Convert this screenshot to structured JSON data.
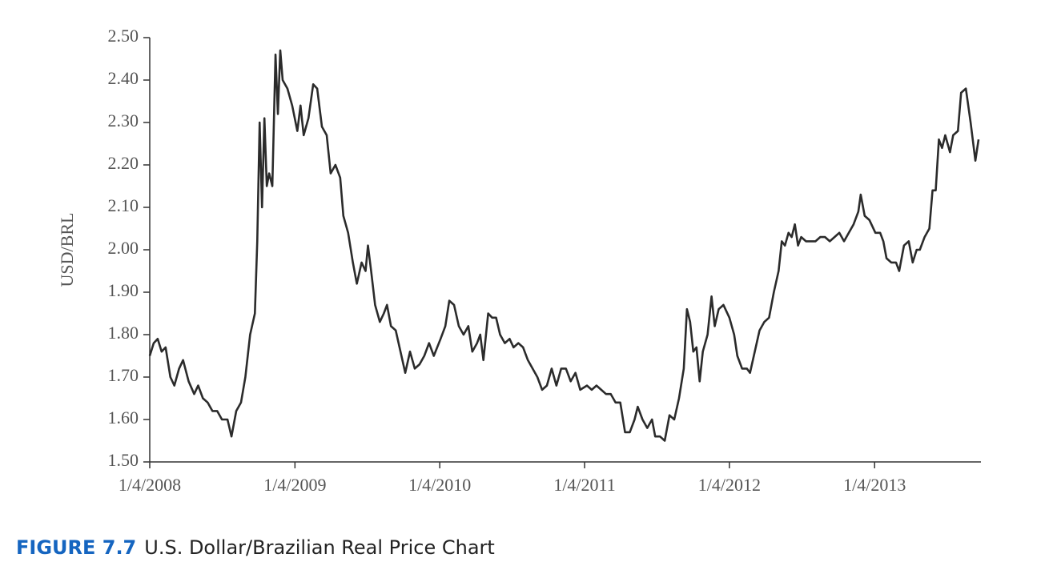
{
  "chart_data": {
    "type": "line",
    "ylabel": "USD/BRL",
    "figure_label": "FIGURE 7.7",
    "caption": "U.S. Dollar/Brazilian Real Price Chart",
    "color": "#2b2b2b",
    "xlim": [
      "2008-01-04",
      "2013-09-29"
    ],
    "xticks": [
      {
        "value": "2008-01-04",
        "label": "1/4/2008"
      },
      {
        "value": "2009-01-04",
        "label": "1/4/2009"
      },
      {
        "value": "2010-01-04",
        "label": "1/4/2010"
      },
      {
        "value": "2011-01-04",
        "label": "1/4/2011"
      },
      {
        "value": "2012-01-04",
        "label": "1/4/2012"
      },
      {
        "value": "2013-01-04",
        "label": "1/4/2013"
      }
    ],
    "ylim": [
      1.5,
      2.5
    ],
    "yticks": [
      {
        "value": 1.5,
        "label": "1.50"
      },
      {
        "value": 1.6,
        "label": "1.60"
      },
      {
        "value": 1.7,
        "label": "1.70"
      },
      {
        "value": 1.8,
        "label": "1.80"
      },
      {
        "value": 1.9,
        "label": "1.90"
      },
      {
        "value": 2.0,
        "label": "2.00"
      },
      {
        "value": 2.1,
        "label": "2.10"
      },
      {
        "value": 2.2,
        "label": "2.20"
      },
      {
        "value": 2.3,
        "label": "2.30"
      },
      {
        "value": 2.4,
        "label": "2.40"
      },
      {
        "value": 2.5,
        "label": "2.50"
      }
    ],
    "x": [
      "2008-01-04",
      "2008-01-14",
      "2008-01-24",
      "2008-02-03",
      "2008-02-13",
      "2008-02-25",
      "2008-03-06",
      "2008-03-18",
      "2008-03-28",
      "2008-04-11",
      "2008-04-25",
      "2008-05-05",
      "2008-05-17",
      "2008-05-29",
      "2008-06-10",
      "2008-06-22",
      "2008-07-04",
      "2008-07-18",
      "2008-07-28",
      "2008-08-09",
      "2008-08-21",
      "2008-09-01",
      "2008-09-13",
      "2008-09-25",
      "2008-10-01",
      "2008-10-07",
      "2008-10-13",
      "2008-10-19",
      "2008-10-25",
      "2008-10-31",
      "2008-11-08",
      "2008-11-16",
      "2008-11-22",
      "2008-11-28",
      "2008-12-04",
      "2008-12-16",
      "2008-12-28",
      "2009-01-10",
      "2009-01-18",
      "2009-01-26",
      "2009-02-07",
      "2009-02-19",
      "2009-03-01",
      "2009-03-13",
      "2009-03-25",
      "2009-04-04",
      "2009-04-16",
      "2009-04-28",
      "2009-05-06",
      "2009-05-18",
      "2009-05-30",
      "2009-06-09",
      "2009-06-21",
      "2009-07-01",
      "2009-07-07",
      "2009-07-15",
      "2009-07-25",
      "2009-08-06",
      "2009-08-16",
      "2009-08-24",
      "2009-09-03",
      "2009-09-15",
      "2009-09-27",
      "2009-10-09",
      "2009-10-21",
      "2009-11-02",
      "2009-11-14",
      "2009-11-26",
      "2009-12-08",
      "2009-12-20",
      "2010-01-06",
      "2010-01-18",
      "2010-01-28",
      "2010-02-09",
      "2010-02-21",
      "2010-03-05",
      "2010-03-17",
      "2010-03-27",
      "2010-04-08",
      "2010-04-16",
      "2010-04-24",
      "2010-05-06",
      "2010-05-16",
      "2010-05-26",
      "2010-06-05",
      "2010-06-17",
      "2010-06-29",
      "2010-07-09",
      "2010-07-21",
      "2010-08-02",
      "2010-08-14",
      "2010-08-26",
      "2010-09-07",
      "2010-09-19",
      "2010-10-01",
      "2010-10-13",
      "2010-10-25",
      "2010-11-06",
      "2010-11-18",
      "2010-11-30",
      "2010-12-12",
      "2010-12-24",
      "2011-01-10",
      "2011-01-22",
      "2011-02-03",
      "2011-02-15",
      "2011-02-27",
      "2011-03-11",
      "2011-03-23",
      "2011-04-04",
      "2011-04-16",
      "2011-04-28",
      "2011-05-10",
      "2011-05-18",
      "2011-05-30",
      "2011-06-11",
      "2011-06-23",
      "2011-07-01",
      "2011-07-13",
      "2011-07-25",
      "2011-08-06",
      "2011-08-18",
      "2011-08-30",
      "2011-09-11",
      "2011-09-19",
      "2011-09-27",
      "2011-10-05",
      "2011-10-13",
      "2011-10-21",
      "2011-10-29",
      "2011-11-10",
      "2011-11-20",
      "2011-11-28",
      "2011-12-08",
      "2011-12-20",
      "2012-01-04",
      "2012-01-16",
      "2012-01-24",
      "2012-02-05",
      "2012-02-17",
      "2012-02-25",
      "2012-03-08",
      "2012-03-20",
      "2012-04-01",
      "2012-04-13",
      "2012-04-25",
      "2012-05-07",
      "2012-05-15",
      "2012-05-23",
      "2012-06-01",
      "2012-06-09",
      "2012-06-17",
      "2012-06-25",
      "2012-07-03",
      "2012-07-15",
      "2012-07-27",
      "2012-08-08",
      "2012-08-20",
      "2012-09-01",
      "2012-09-13",
      "2012-09-25",
      "2012-10-07",
      "2012-10-19",
      "2012-10-31",
      "2012-11-12",
      "2012-11-24",
      "2012-11-30",
      "2012-12-10",
      "2012-12-22",
      "2013-01-06",
      "2013-01-18",
      "2013-01-26",
      "2013-02-03",
      "2013-02-15",
      "2013-02-27",
      "2013-03-07",
      "2013-03-19",
      "2013-03-31",
      "2013-04-10",
      "2013-04-20",
      "2013-04-28",
      "2013-05-10",
      "2013-05-22",
      "2013-05-30",
      "2013-06-07",
      "2013-06-15",
      "2013-06-23",
      "2013-07-01",
      "2013-07-13",
      "2013-07-21",
      "2013-08-02",
      "2013-08-10",
      "2013-08-22",
      "2013-09-03",
      "2013-09-15",
      "2013-09-23"
    ],
    "values": [
      1.75,
      1.78,
      1.79,
      1.76,
      1.77,
      1.7,
      1.68,
      1.72,
      1.74,
      1.69,
      1.66,
      1.68,
      1.65,
      1.64,
      1.62,
      1.62,
      1.6,
      1.6,
      1.56,
      1.62,
      1.64,
      1.7,
      1.8,
      1.85,
      2.02,
      2.3,
      2.1,
      2.31,
      2.15,
      2.18,
      2.15,
      2.46,
      2.32,
      2.47,
      2.4,
      2.38,
      2.34,
      2.28,
      2.34,
      2.27,
      2.31,
      2.39,
      2.38,
      2.29,
      2.27,
      2.18,
      2.2,
      2.17,
      2.08,
      2.04,
      1.97,
      1.92,
      1.97,
      1.95,
      2.01,
      1.95,
      1.87,
      1.83,
      1.85,
      1.87,
      1.82,
      1.81,
      1.76,
      1.71,
      1.76,
      1.72,
      1.73,
      1.75,
      1.78,
      1.75,
      1.79,
      1.82,
      1.88,
      1.87,
      1.82,
      1.8,
      1.82,
      1.76,
      1.78,
      1.8,
      1.74,
      1.85,
      1.84,
      1.84,
      1.8,
      1.78,
      1.79,
      1.77,
      1.78,
      1.77,
      1.74,
      1.72,
      1.7,
      1.67,
      1.68,
      1.72,
      1.68,
      1.72,
      1.72,
      1.69,
      1.71,
      1.67,
      1.68,
      1.67,
      1.68,
      1.67,
      1.66,
      1.66,
      1.64,
      1.64,
      1.57,
      1.57,
      1.6,
      1.63,
      1.6,
      1.58,
      1.6,
      1.56,
      1.56,
      1.55,
      1.61,
      1.6,
      1.65,
      1.72,
      1.86,
      1.83,
      1.76,
      1.77,
      1.69,
      1.76,
      1.8,
      1.89,
      1.82,
      1.86,
      1.87,
      1.84,
      1.8,
      1.75,
      1.72,
      1.72,
      1.71,
      1.76,
      1.81,
      1.83,
      1.84,
      1.9,
      1.95,
      2.02,
      2.01,
      2.04,
      2.03,
      2.06,
      2.01,
      2.03,
      2.02,
      2.02,
      2.02,
      2.03,
      2.03,
      2.02,
      2.03,
      2.04,
      2.02,
      2.04,
      2.06,
      2.09,
      2.13,
      2.08,
      2.07,
      2.04,
      2.04,
      2.02,
      1.98,
      1.97,
      1.97,
      1.95,
      2.01,
      2.02,
      1.97,
      2.0,
      2.0,
      2.03,
      2.05,
      2.14,
      2.14,
      2.26,
      2.24,
      2.27,
      2.23,
      2.27,
      2.28,
      2.37,
      2.38,
      2.3,
      2.21,
      2.26
    ]
  }
}
